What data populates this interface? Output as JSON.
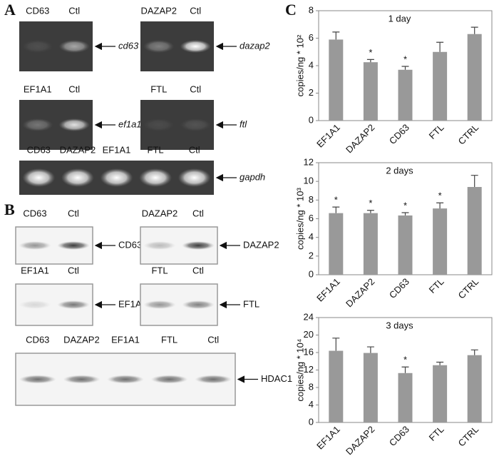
{
  "panel_a": {
    "label": "A",
    "gels": [
      {
        "lanes": [
          "CD63",
          "Ctl"
        ],
        "target": "cd63"
      },
      {
        "lanes": [
          "DAZAP2",
          "Ctl"
        ],
        "target": "dazap2"
      },
      {
        "lanes": [
          "EF1A1",
          "Ctl"
        ],
        "target": "ef1a1"
      },
      {
        "lanes": [
          "FTL",
          "Ctl"
        ],
        "target": "ftl"
      },
      {
        "lanes": [
          "CD63",
          "DAZAP2",
          "EF1A1",
          "FTL",
          "Ctl"
        ],
        "target": "gapdh"
      }
    ]
  },
  "panel_b": {
    "label": "B",
    "blots": [
      {
        "lanes": [
          "CD63",
          "Ctl"
        ],
        "target": "CD63"
      },
      {
        "lanes": [
          "DAZAP2",
          "Ctl"
        ],
        "target": "DAZAP2"
      },
      {
        "lanes": [
          "EF1A1",
          "Ctl"
        ],
        "target": "EF1A1"
      },
      {
        "lanes": [
          "FTL",
          "Ctl"
        ],
        "target": "FTL"
      },
      {
        "lanes": [
          "CD63",
          "DAZAP2",
          "EF1A1",
          "FTL",
          "Ctl"
        ],
        "target": "HDAC1"
      }
    ]
  },
  "panel_c": {
    "label": "C"
  },
  "chart_data": [
    {
      "type": "bar",
      "title": "1 day",
      "ylabel": "copies/ng * 10²",
      "categories": [
        "EF1A1",
        "DAZAP2",
        "CD63",
        "FTL",
        "CTRL"
      ],
      "values": [
        5.9,
        4.25,
        3.7,
        5.0,
        6.3
      ],
      "errors": [
        0.55,
        0.2,
        0.25,
        0.7,
        0.5
      ],
      "color": "#999999",
      "ylim": [
        0,
        8
      ],
      "yticks": [
        0,
        2,
        4,
        6,
        8
      ],
      "annotations": [
        {
          "index": 1,
          "text": "*"
        },
        {
          "index": 2,
          "text": "*"
        }
      ]
    },
    {
      "type": "bar",
      "title": "2 days",
      "ylabel": "copies/ng * 10³",
      "categories": [
        "EF1A1",
        "DAZAP2",
        "CD63",
        "FTL",
        "CTRL"
      ],
      "values": [
        6.6,
        6.6,
        6.35,
        7.1,
        9.4
      ],
      "errors": [
        0.65,
        0.3,
        0.3,
        0.6,
        1.25
      ],
      "color": "#999999",
      "ylim": [
        0,
        12
      ],
      "yticks": [
        0,
        2,
        4,
        6,
        8,
        10,
        12
      ],
      "annotations": [
        {
          "index": 0,
          "text": "*"
        },
        {
          "index": 1,
          "text": "*"
        },
        {
          "index": 2,
          "text": "*"
        },
        {
          "index": 3,
          "text": "*"
        }
      ]
    },
    {
      "type": "bar",
      "title": "3 days",
      "ylabel": "copies/ng * 10⁴",
      "categories": [
        "EF1A1",
        "DAZAP2",
        "CD63",
        "FTL",
        "CTRL"
      ],
      "values": [
        16.4,
        15.9,
        11.3,
        13.1,
        15.4
      ],
      "errors": [
        2.9,
        1.4,
        1.4,
        0.7,
        1.2
      ],
      "color": "#999999",
      "ylim": [
        0,
        24
      ],
      "yticks": [
        0,
        4,
        8,
        12,
        16,
        20,
        24
      ],
      "annotations": [
        {
          "index": 2,
          "text": "*"
        }
      ]
    }
  ]
}
